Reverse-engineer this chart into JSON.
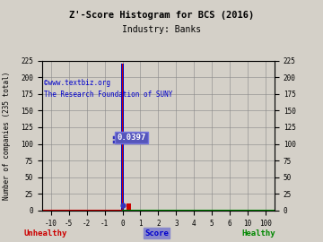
{
  "title": "Z'-Score Histogram for BCS (2016)",
  "subtitle": "Industry: Banks",
  "watermark1": "©www.textbiz.org",
  "watermark2": "The Research Foundation of SUNY",
  "xlabel_score": "Score",
  "xlabel_left": "Unhealthy",
  "xlabel_right": "Healthy",
  "ylabel": "Number of companies (235 total)",
  "bg_color": "#d4d0c8",
  "grid_color": "#888888",
  "x_tick_labels": [
    "-10",
    "-5",
    "-2",
    "-1",
    "0",
    "1",
    "2",
    "3",
    "4",
    "5",
    "6",
    "10",
    "100"
  ],
  "ylim": [
    0,
    225
  ],
  "y_ticks": [
    0,
    25,
    50,
    75,
    100,
    125,
    150,
    175,
    200,
    225
  ],
  "tall_bar_height": 220,
  "small_bar_height": 10,
  "blue_bar_color": "#0000cc",
  "red_bar_color": "#cc0000",
  "annotation_text": "0.0397",
  "annotation_bg": "#5555bb",
  "annotation_fg": "white",
  "hline_color": "#3333bb",
  "dot_color": "#3333bb",
  "bottom_red_color": "#cc0000",
  "bottom_green_color": "#008800",
  "title_fontsize": 7.5,
  "subtitle_fontsize": 7,
  "watermark_fontsize": 5.5,
  "tick_fontsize": 5.5,
  "label_fontsize": 6.5
}
